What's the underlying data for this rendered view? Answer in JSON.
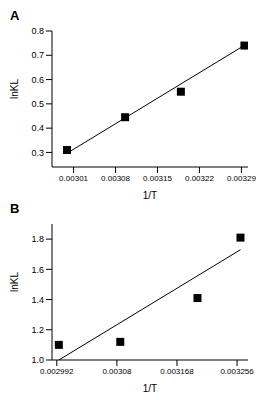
{
  "chart_data": [
    {
      "type": "scatter",
      "title": "A",
      "x_label": "1/T",
      "y_label": "lnKL",
      "xlim": [
        0.002974,
        0.003301
      ],
      "xticks": [
        0.00301,
        0.00308,
        0.00315,
        0.00322,
        0.00329
      ],
      "ylim": [
        0.24,
        0.8
      ],
      "yticks": [
        0.3,
        0.4,
        0.5,
        0.6,
        0.7,
        0.8
      ],
      "series": [
        {
          "type": "scatter",
          "marker": "square",
          "color": "#000000",
          "x": [
            0.002999,
            0.003096,
            0.003189,
            0.003295
          ],
          "values": [
            0.31,
            0.445,
            0.55,
            0.74
          ]
        },
        {
          "type": "line",
          "line_style": "solid",
          "color": "#000000",
          "x": [
            0.002998,
            0.003291
          ],
          "values": [
            0.295,
            0.735
          ]
        }
      ]
    },
    {
      "type": "scatter",
      "title": "B",
      "x_label": "1/T",
      "y_label": "lnKL",
      "xlim": [
        0.002985,
        0.003272
      ],
      "xticks": [
        0.002992,
        0.00308,
        0.003168,
        0.003256
      ],
      "ylim": [
        1.0,
        1.9
      ],
      "yticks": [
        {
          "value": 1.0,
          "label": "1.0"
        },
        1.2,
        1.4,
        1.6,
        1.8
      ],
      "series": [
        {
          "type": "scatter",
          "marker": "square",
          "color": "#000000",
          "x": [
            0.002995,
            0.003085,
            0.003198,
            0.003261
          ],
          "values": [
            1.1,
            1.12,
            1.41,
            1.81
          ]
        },
        {
          "type": "line",
          "line_style": "solid",
          "color": "#000000",
          "x": [
            0.002995,
            0.003261
          ],
          "values": [
            1.0,
            1.73
          ]
        }
      ]
    }
  ]
}
